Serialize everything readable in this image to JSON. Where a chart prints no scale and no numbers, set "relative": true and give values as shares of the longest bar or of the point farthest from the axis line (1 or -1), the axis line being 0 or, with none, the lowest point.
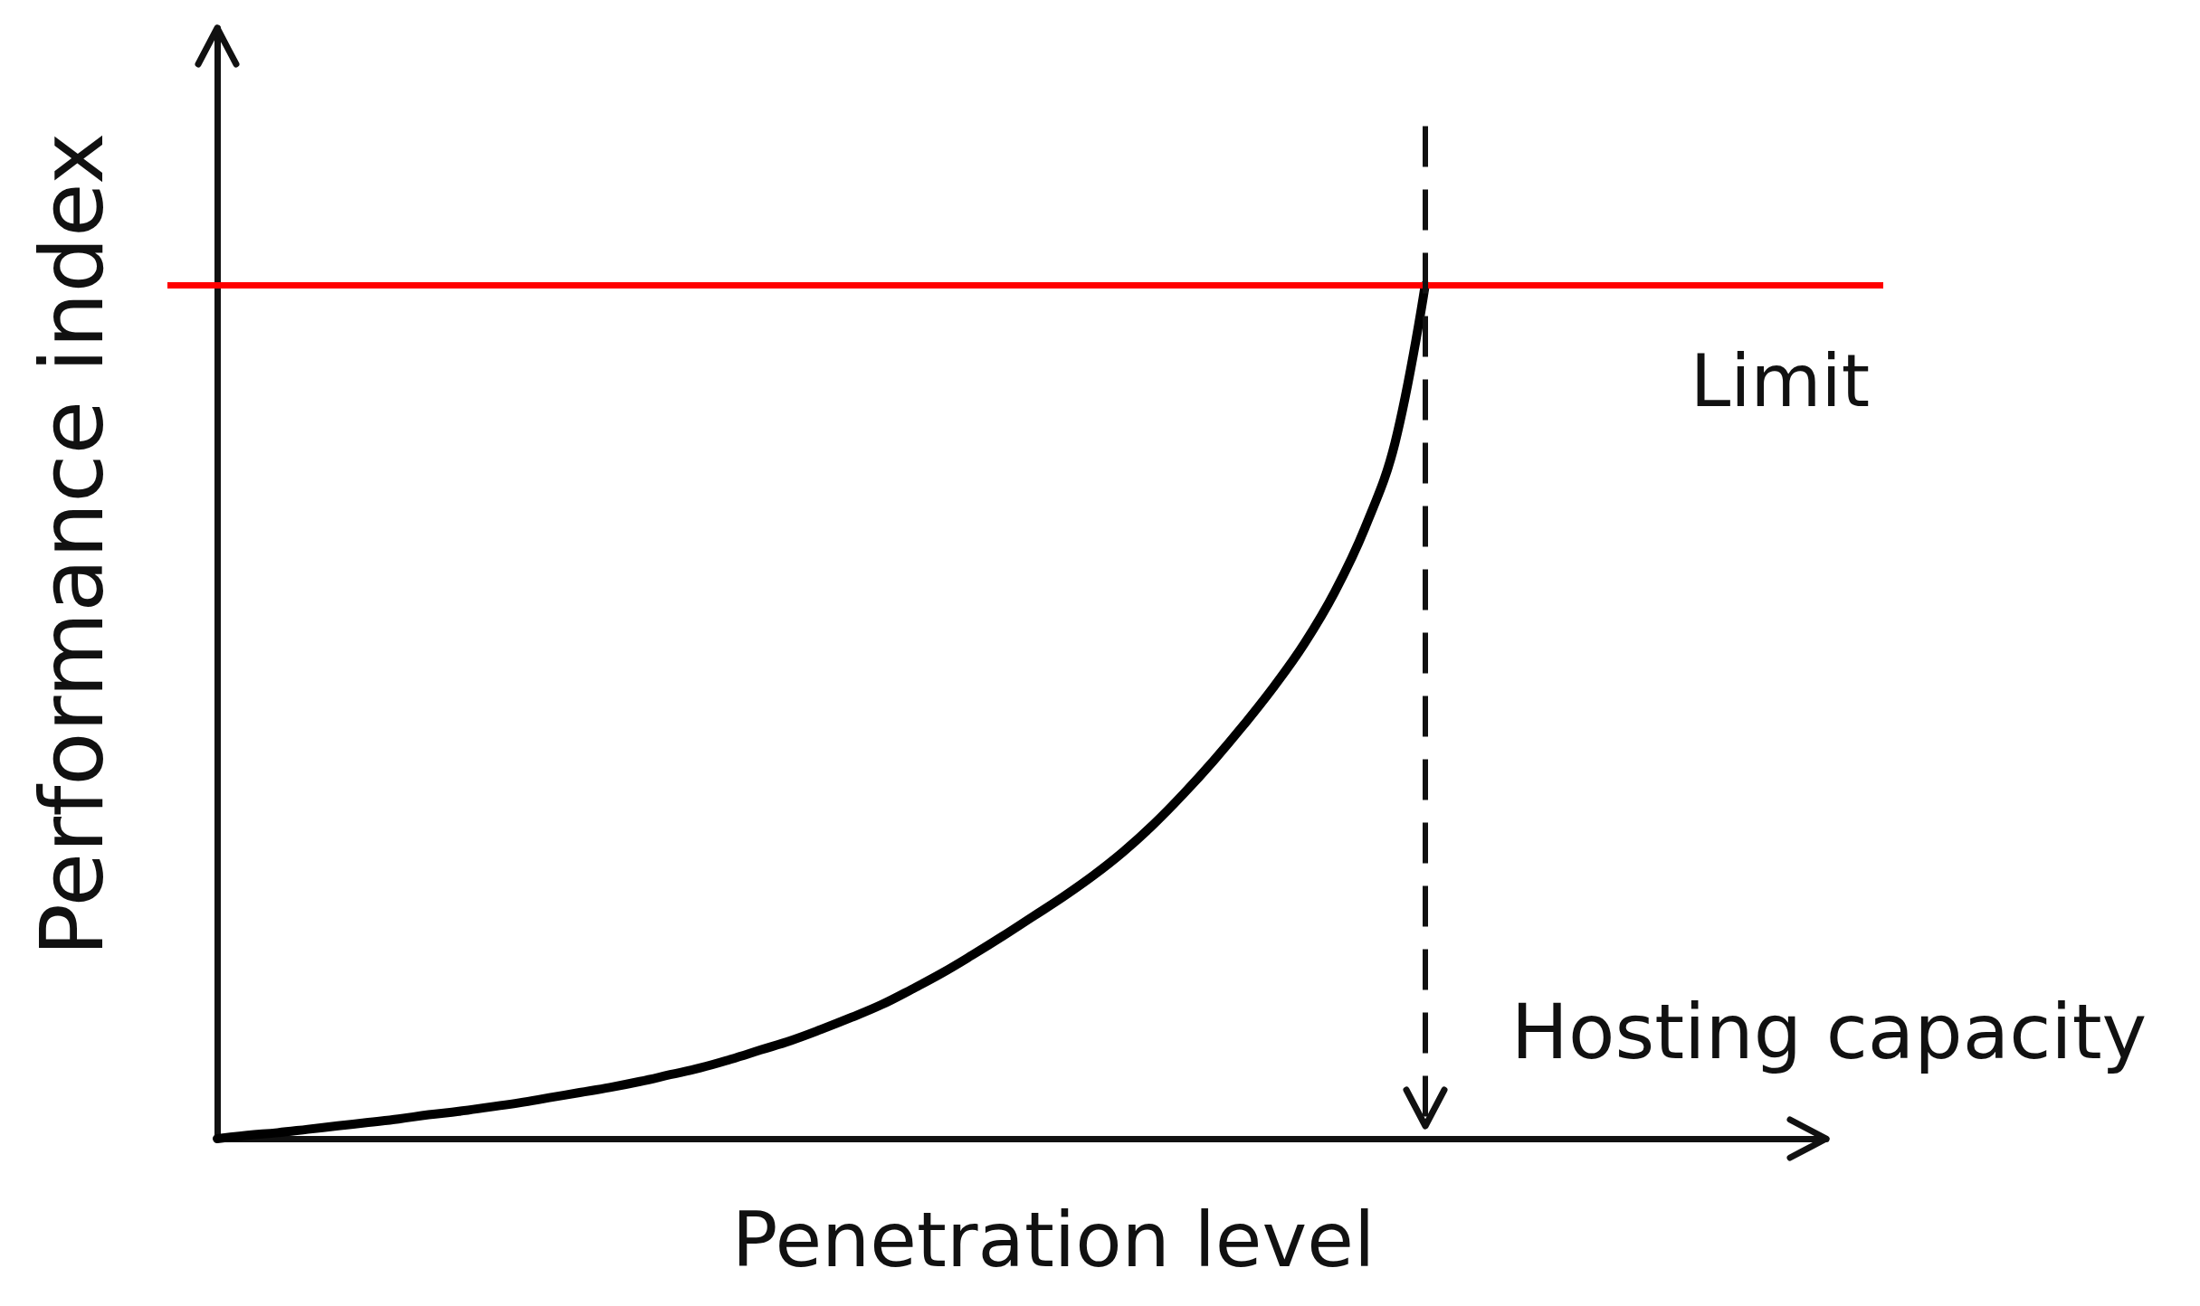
{
  "chart_data": {
    "type": "line",
    "xlabel": "Penetration level",
    "ylabel": "Performance index",
    "relative": true,
    "grid": false,
    "marker": "none",
    "categories": [
      null,
      null,
      null,
      null,
      null,
      null,
      null,
      null,
      null,
      null,
      null,
      null,
      null,
      null,
      null,
      null,
      null,
      null,
      null,
      null,
      null,
      null,
      null,
      null,
      null,
      null,
      null,
      null,
      null,
      null,
      null,
      null,
      null,
      null,
      null,
      null,
      null,
      null,
      null,
      null,
      null
    ],
    "series": [
      {
        "color": "#000000",
        "values": [
          0,
          0.004,
          0.007,
          0.011,
          0.015,
          0.019,
          0.023,
          0.028,
          0.032,
          0.037,
          0.042,
          0.048,
          0.054,
          0.06,
          0.067,
          0.075,
          0.083,
          0.093,
          0.104,
          0.115,
          0.128,
          0.142,
          0.157,
          0.175,
          0.194,
          0.215,
          0.237,
          0.26,
          0.283,
          0.308,
          0.336,
          0.368,
          0.404,
          0.443,
          0.485,
          0.53,
          0.58,
          0.64,
          0.715,
          0.815,
          1
        ]
      }
    ],
    "ref_lines": [
      {
        "axis": "y",
        "value": 1,
        "label": "Limit",
        "color": "#ff0000",
        "line_style": "solid"
      }
    ],
    "annotations": [
      "Hosting capacity"
    ]
  }
}
